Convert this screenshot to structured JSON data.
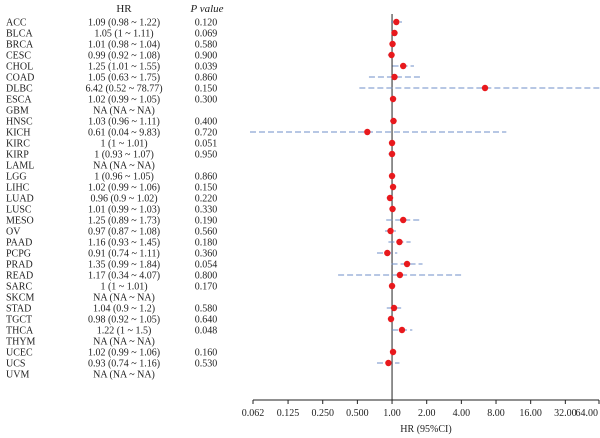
{
  "header": {
    "col_hr": "HR",
    "col_p": "P value"
  },
  "chart_data": {
    "type": "forest",
    "xlabel": "HR (95%CI)",
    "x_scale": "log2",
    "xlim": [
      0.062,
      64
    ],
    "x_ticks": [
      0.062,
      0.125,
      0.25,
      0.5,
      1,
      2,
      4,
      8,
      16,
      32,
      64
    ],
    "x_tick_labels": [
      "0.062",
      "0.125",
      "0.250",
      "0.500",
      "1.00",
      "2.00",
      "4.00",
      "8.00",
      "16.00",
      "32.00",
      "64.00"
    ],
    "reference_line": 1,
    "colors": {
      "point": "#e8191d",
      "ci": "#6f8fc8",
      "axis": "#222222"
    },
    "rows": [
      {
        "label": "ACC",
        "hr_text": "1.09 (0.98 ~ 1.22)",
        "p": "0.120",
        "hr": 1.09,
        "low": 0.98,
        "high": 1.22
      },
      {
        "label": "BLCA",
        "hr_text": "1.05 (1 ~ 1.11)",
        "p": "0.069",
        "hr": 1.05,
        "low": 1.0,
        "high": 1.11
      },
      {
        "label": "BRCA",
        "hr_text": "1.01 (0.98 ~ 1.04)",
        "p": "0.580",
        "hr": 1.01,
        "low": 0.98,
        "high": 1.04
      },
      {
        "label": "CESC",
        "hr_text": "0.99 (0.92 ~ 1.08)",
        "p": "0.900",
        "hr": 0.99,
        "low": 0.92,
        "high": 1.08
      },
      {
        "label": "CHOL",
        "hr_text": "1.25 (1.01 ~ 1.55)",
        "p": "0.039",
        "hr": 1.25,
        "low": 1.01,
        "high": 1.55
      },
      {
        "label": "COAD",
        "hr_text": "1.05 (0.63 ~ 1.75)",
        "p": "0.860",
        "hr": 1.05,
        "low": 0.63,
        "high": 1.75
      },
      {
        "label": "DLBC",
        "hr_text": "6.42 (0.52 ~ 78.77)",
        "p": "0.150",
        "hr": 6.42,
        "low": 0.52,
        "high": 78.77
      },
      {
        "label": "ESCA",
        "hr_text": "1.02 (0.99 ~ 1.05)",
        "p": "0.300",
        "hr": 1.02,
        "low": 0.99,
        "high": 1.05
      },
      {
        "label": "GBM",
        "hr_text": "NA (NA ~ NA)",
        "p": "",
        "hr": null,
        "low": null,
        "high": null
      },
      {
        "label": "HNSC",
        "hr_text": "1.03 (0.96 ~ 1.11)",
        "p": "0.400",
        "hr": 1.03,
        "low": 0.96,
        "high": 1.11
      },
      {
        "label": "KICH",
        "hr_text": "0.61 (0.04 ~ 9.83)",
        "p": "0.720",
        "hr": 0.61,
        "low": 0.04,
        "high": 9.83
      },
      {
        "label": "KIRC",
        "hr_text": "1 (1 ~ 1.01)",
        "p": "0.051",
        "hr": 1.0,
        "low": 1.0,
        "high": 1.01
      },
      {
        "label": "KIRP",
        "hr_text": "1 (0.93 ~ 1.07)",
        "p": "0.950",
        "hr": 1.0,
        "low": 0.93,
        "high": 1.07
      },
      {
        "label": "LAML",
        "hr_text": "NA (NA ~ NA)",
        "p": "",
        "hr": null,
        "low": null,
        "high": null
      },
      {
        "label": "LGG",
        "hr_text": "1 (0.96 ~ 1.05)",
        "p": "0.860",
        "hr": 1.0,
        "low": 0.96,
        "high": 1.05
      },
      {
        "label": "LIHC",
        "hr_text": "1.02 (0.99 ~ 1.06)",
        "p": "0.150",
        "hr": 1.02,
        "low": 0.99,
        "high": 1.06
      },
      {
        "label": "LUAD",
        "hr_text": "0.96 (0.9 ~ 1.02)",
        "p": "0.220",
        "hr": 0.96,
        "low": 0.9,
        "high": 1.02
      },
      {
        "label": "LUSC",
        "hr_text": "1.01 (0.99 ~ 1.03)",
        "p": "0.330",
        "hr": 1.01,
        "low": 0.99,
        "high": 1.03
      },
      {
        "label": "MESO",
        "hr_text": "1.25 (0.89 ~ 1.73)",
        "p": "0.190",
        "hr": 1.25,
        "low": 0.89,
        "high": 1.73
      },
      {
        "label": "OV",
        "hr_text": "0.97 (0.87 ~ 1.08)",
        "p": "0.560",
        "hr": 0.97,
        "low": 0.87,
        "high": 1.08
      },
      {
        "label": "PAAD",
        "hr_text": "1.16 (0.93 ~ 1.45)",
        "p": "0.180",
        "hr": 1.16,
        "low": 0.93,
        "high": 1.45
      },
      {
        "label": "PCPG",
        "hr_text": "0.91 (0.74 ~ 1.11)",
        "p": "0.360",
        "hr": 0.91,
        "low": 0.74,
        "high": 1.11
      },
      {
        "label": "PRAD",
        "hr_text": "1.35 (0.99 ~ 1.84)",
        "p": "0.054",
        "hr": 1.35,
        "low": 0.99,
        "high": 1.84
      },
      {
        "label": "READ",
        "hr_text": "1.17 (0.34 ~ 4.07)",
        "p": "0.800",
        "hr": 1.17,
        "low": 0.34,
        "high": 4.07
      },
      {
        "label": "SARC",
        "hr_text": "1 (1 ~ 1.01)",
        "p": "0.170",
        "hr": 1.0,
        "low": 1.0,
        "high": 1.01
      },
      {
        "label": "SKCM",
        "hr_text": "NA (NA ~ NA)",
        "p": "",
        "hr": null,
        "low": null,
        "high": null
      },
      {
        "label": "STAD",
        "hr_text": "1.04 (0.9 ~ 1.2)",
        "p": "0.580",
        "hr": 1.04,
        "low": 0.9,
        "high": 1.2
      },
      {
        "label": "TGCT",
        "hr_text": "0.98 (0.92 ~ 1.05)",
        "p": "0.640",
        "hr": 0.98,
        "low": 0.92,
        "high": 1.05
      },
      {
        "label": "THCA",
        "hr_text": "1.22 (1 ~ 1.5)",
        "p": "0.048",
        "hr": 1.22,
        "low": 1.0,
        "high": 1.5
      },
      {
        "label": "THYM",
        "hr_text": "NA (NA ~ NA)",
        "p": "",
        "hr": null,
        "low": null,
        "high": null
      },
      {
        "label": "UCEC",
        "hr_text": "1.02 (0.99 ~ 1.06)",
        "p": "0.160",
        "hr": 1.02,
        "low": 0.99,
        "high": 1.06
      },
      {
        "label": "UCS",
        "hr_text": "0.93 (0.74 ~ 1.16)",
        "p": "0.530",
        "hr": 0.93,
        "low": 0.74,
        "high": 1.16
      },
      {
        "label": "UVM",
        "hr_text": "NA (NA ~ NA)",
        "p": "",
        "hr": null,
        "low": null,
        "high": null
      }
    ]
  }
}
